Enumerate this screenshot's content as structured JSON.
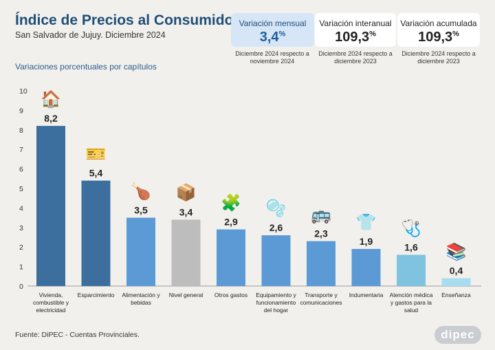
{
  "header": {
    "title": "Índice de Precios al Consumidor",
    "subtitle": "San Salvador de Jujuy. Diciembre 2024",
    "section": "Variaciones porcentuales por capítulos"
  },
  "cards": [
    {
      "label": "Variación mensual",
      "value": "3,4",
      "unit": "%",
      "note": "Diciembre 2024 respecto a noviembre 2024",
      "active": true
    },
    {
      "label": "Variación interanual",
      "value": "109,3",
      "unit": "%",
      "note": "Diciembre 2024 respecto a diciembre 2023",
      "active": false
    },
    {
      "label": "Variación acumulada",
      "value": "109,3",
      "unit": "%",
      "note": "Diciembre 2024 respecto a diciembre 2023",
      "active": false
    }
  ],
  "chart_data": {
    "type": "bar",
    "title": "Variaciones porcentuales por capítulos",
    "ylim": [
      0,
      10
    ],
    "yticks": [
      0,
      1,
      2,
      3,
      4,
      5,
      6,
      7,
      8,
      9,
      10
    ],
    "grid": false,
    "categories": [
      "Vivienda, combustible y electricidad",
      "Esparcimiento",
      "Alimentación y bebidas",
      "Nivel general",
      "Otros gastos",
      "Equipamiento y funcionamiento del hogar",
      "Transporte y comunicaciones",
      "Indumentaria",
      "Atención médica y gastos para la salud",
      "Enseñanza"
    ],
    "category_lines": [
      [
        "Vivienda,",
        "combustible y",
        "electricidad"
      ],
      [
        "Esparcimiento"
      ],
      [
        "Alimentación y",
        "bebidas"
      ],
      [
        "Nivel general"
      ],
      [
        "Otros gastos"
      ],
      [
        "Equipamiento y",
        "funcionamiento",
        "del hogar"
      ],
      [
        "Transporte y",
        "comunicaciones"
      ],
      [
        "Indumentaria"
      ],
      [
        "Atención médica",
        "y gastos para la",
        "salud"
      ],
      [
        "Enseñanza"
      ]
    ],
    "values": [
      8.2,
      5.4,
      3.5,
      3.4,
      2.9,
      2.6,
      2.3,
      1.9,
      1.6,
      0.4
    ],
    "value_labels": [
      "8,2",
      "5,4",
      "3,5",
      "3,4",
      "2,9",
      "2,6",
      "2,3",
      "1,9",
      "1,6",
      "0,4"
    ],
    "colors": [
      "#3d6f9e",
      "#3d6f9e",
      "#5b9ad5",
      "#bdbdbd",
      "#5b9ad5",
      "#5b9ad5",
      "#5b9ad5",
      "#5b9ad5",
      "#7fc3e0",
      "#a8dcf0"
    ],
    "icons": [
      "🏠",
      "🎫",
      "🍗",
      "📦",
      "🧩",
      "🫧",
      "🚌",
      "👕",
      "🩺",
      "📚"
    ]
  },
  "footer": {
    "source": "Fuente: DiPEC - Cuentas Provinciales.",
    "logo": "dipec"
  }
}
